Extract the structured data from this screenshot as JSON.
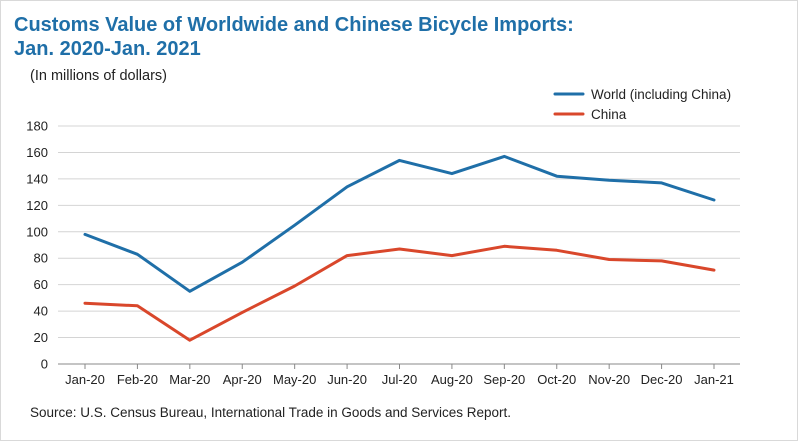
{
  "header": {
    "title_line1": "Customs Value of Worldwide and Chinese Bicycle Imports:",
    "title_line2": "Jan. 2020-Jan. 2021",
    "subtitle": "(In millions of dollars)"
  },
  "footer": {
    "source": "Source: U.S. Census Bureau, International Trade in Goods and Services Report."
  },
  "chart_data": {
    "type": "line",
    "title": "Customs Value of Worldwide and Chinese Bicycle Imports: Jan. 2020-Jan. 2021",
    "subtitle": "(In millions of dollars)",
    "categories": [
      "Jan-20",
      "Feb-20",
      "Mar-20",
      "Apr-20",
      "May-20",
      "Jun-20",
      "Jul-20",
      "Aug-20",
      "Sep-20",
      "Oct-20",
      "Nov-20",
      "Dec-20",
      "Jan-21"
    ],
    "y_ticks": [
      0,
      20,
      40,
      60,
      80,
      100,
      120,
      140,
      160,
      180
    ],
    "ylim": [
      0,
      180
    ],
    "grid": true,
    "legend_position": "top-right",
    "series": [
      {
        "name": "World (including China)",
        "color": "#1f6fa8",
        "values": [
          98,
          83,
          55,
          77,
          105,
          134,
          154,
          144,
          157,
          142,
          139,
          137,
          124
        ]
      },
      {
        "name": "China",
        "color": "#d9472b",
        "values": [
          46,
          44,
          18,
          39,
          59,
          82,
          87,
          82,
          89,
          86,
          79,
          78,
          71
        ]
      }
    ]
  }
}
